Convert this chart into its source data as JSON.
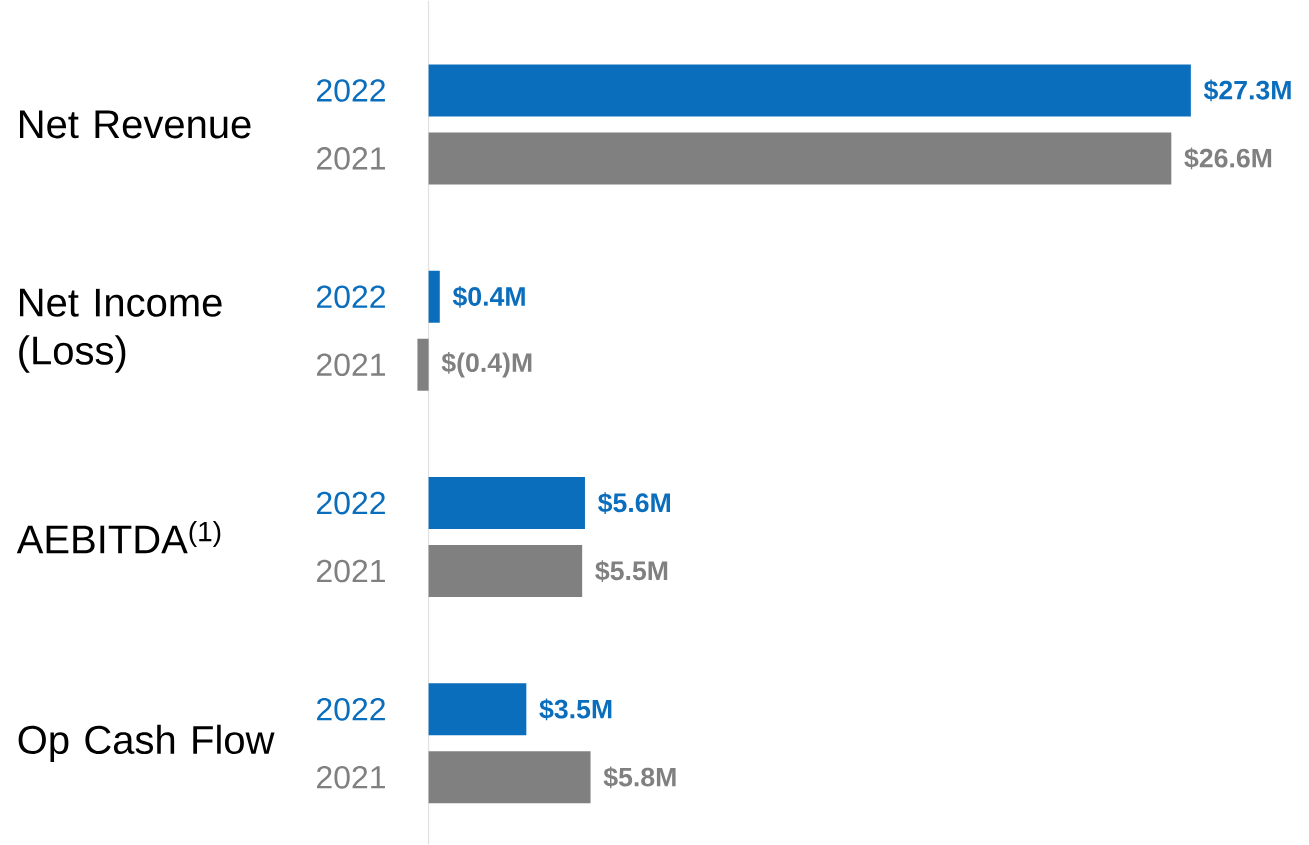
{
  "chart_data": {
    "type": "bar",
    "orientation": "horizontal",
    "categories": [
      "Net Revenue",
      "Net Income (Loss)",
      "AEBITDA$^{(1)}$",
      "Op Cash Flow"
    ],
    "series": [
      {
        "name": "2022",
        "color": "#0a6ebd",
        "values": [
          27.3,
          0.4,
          5.6,
          3.5
        ],
        "value_labels": [
          "$27.3M",
          "$0.4M",
          "$5.6M",
          "$3.5M"
        ]
      },
      {
        "name": "2021",
        "color": "#808080",
        "values": [
          26.6,
          -0.4,
          5.5,
          5.8
        ],
        "value_labels": [
          "$26.6M",
          "$(0.4)M",
          "$5.5M",
          "$5.8M"
        ]
      }
    ]
  }
}
